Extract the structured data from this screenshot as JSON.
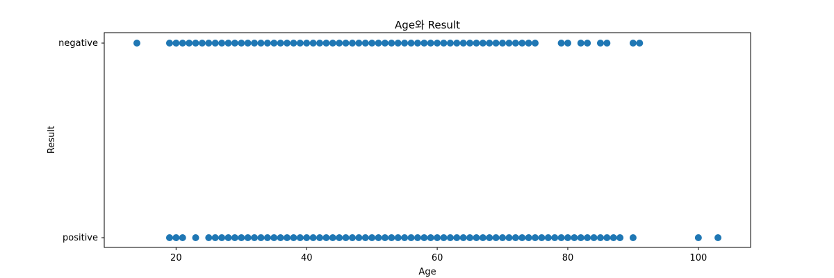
{
  "chart_data": {
    "type": "scatter",
    "title": "Age와 Result",
    "xlabel": "Age",
    "ylabel": "Result",
    "xlim": [
      9,
      108
    ],
    "x_ticks": [
      20,
      40,
      60,
      80,
      100
    ],
    "y_categories": [
      "positive",
      "negative"
    ],
    "grid": false,
    "marker_color": "#1f77b4",
    "series": [
      {
        "y": "negative",
        "x": [
          14,
          19,
          20,
          21,
          22,
          23,
          24,
          25,
          26,
          27,
          28,
          29,
          30,
          31,
          32,
          33,
          34,
          35,
          36,
          37,
          38,
          39,
          40,
          41,
          42,
          43,
          44,
          45,
          46,
          47,
          48,
          49,
          50,
          51,
          52,
          53,
          54,
          55,
          56,
          57,
          58,
          59,
          60,
          61,
          62,
          63,
          64,
          65,
          66,
          67,
          68,
          69,
          70,
          71,
          72,
          73,
          74,
          75,
          79,
          80,
          82,
          83,
          85,
          86,
          90,
          91
        ]
      },
      {
        "y": "positive",
        "x": [
          19,
          20,
          21,
          23,
          25,
          26,
          27,
          28,
          29,
          30,
          31,
          32,
          33,
          34,
          35,
          36,
          37,
          38,
          39,
          40,
          41,
          42,
          43,
          44,
          45,
          46,
          47,
          48,
          49,
          50,
          51,
          52,
          53,
          54,
          55,
          56,
          57,
          58,
          59,
          60,
          61,
          62,
          63,
          64,
          65,
          66,
          67,
          68,
          69,
          70,
          71,
          72,
          73,
          74,
          75,
          76,
          77,
          78,
          79,
          80,
          81,
          82,
          83,
          84,
          85,
          86,
          87,
          88,
          90,
          100,
          103
        ]
      }
    ]
  }
}
